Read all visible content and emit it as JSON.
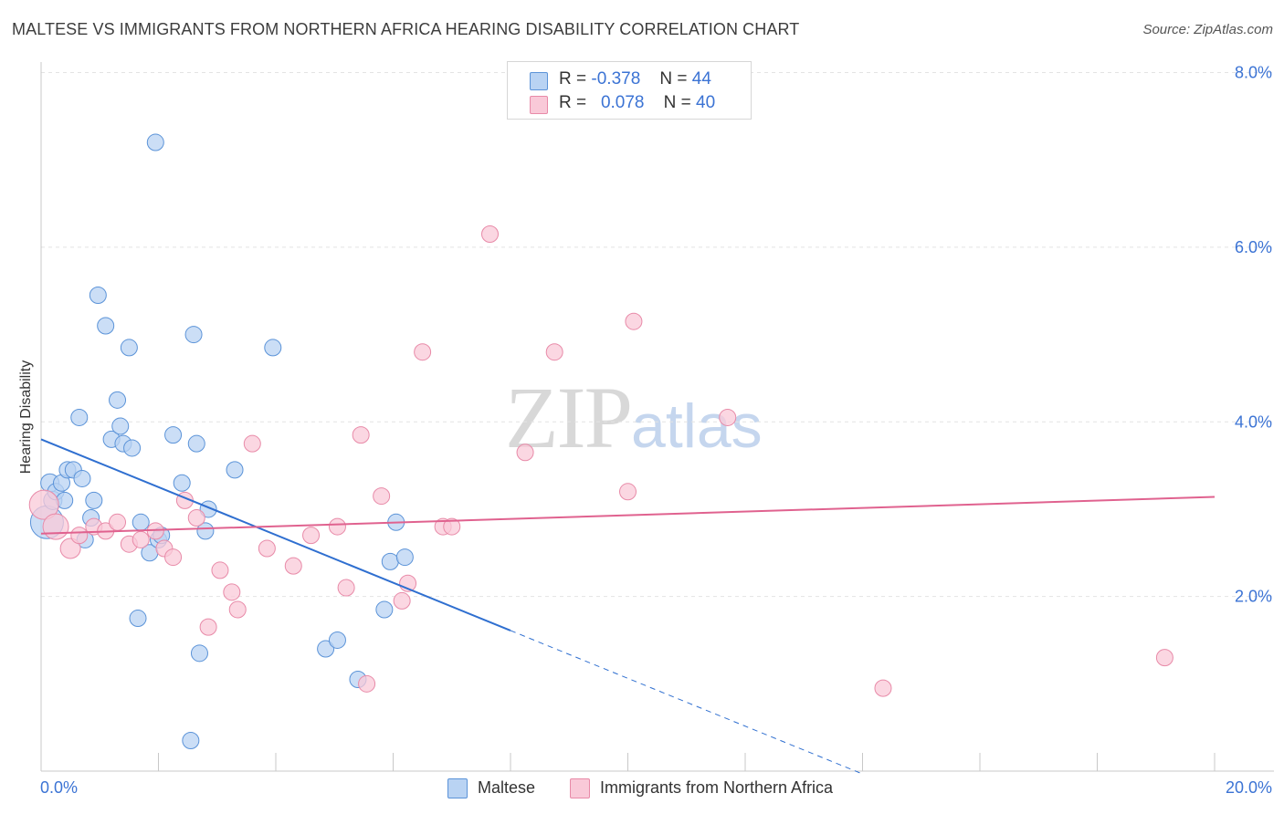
{
  "header": {
    "title": "MALTESE VS IMMIGRANTS FROM NORTHERN AFRICA HEARING DISABILITY CORRELATION CHART",
    "source": "Source: ZipAtlas.com"
  },
  "legend": {
    "maltese": {
      "r_label": "R =",
      "r_value": "-0.378",
      "n_label": "N =",
      "n_value": "44"
    },
    "immigrants": {
      "r_label": "R =",
      "r_value": "0.078",
      "n_label": "N =",
      "n_value": "40"
    }
  },
  "bottom_legend": {
    "maltese": "Maltese",
    "immigrants": "Immigrants from Northern Africa"
  },
  "watermark": {
    "zip": "ZIP",
    "atlas": "atlas"
  },
  "colors": {
    "maltese_fill": "#b9d3f3",
    "maltese_stroke": "#5b93d8",
    "maltese_line": "#2f6fd0",
    "immigrants_fill": "#f9c9d8",
    "immigrants_stroke": "#e88aa8",
    "immigrants_line": "#e0628f",
    "axis_text": "#3b73d4"
  },
  "chart_data": {
    "type": "scatter",
    "title": "MALTESE VS IMMIGRANTS FROM NORTHERN AFRICA HEARING DISABILITY CORRELATION CHART",
    "xlabel": "",
    "ylabel": "Hearing Disability",
    "xlim": [
      0,
      20
    ],
    "ylim": [
      0,
      8.3
    ],
    "x_tick_labels": [
      "0.0%",
      "20.0%"
    ],
    "y_ticks": [
      2,
      4,
      6,
      8
    ],
    "y_tick_labels": [
      "2.0%",
      "4.0%",
      "6.0%",
      "8.0%"
    ],
    "grid": "horizontal dashed",
    "legend_position": "top-center",
    "series": [
      {
        "name": "Maltese",
        "r": -0.378,
        "n": 44,
        "trend": {
          "x0": 0,
          "y0": 3.8,
          "x1": 8.0,
          "y1": 1.61,
          "dashed_to_x": 14.0
        },
        "points": [
          [
            0.1,
            2.85,
            18
          ],
          [
            0.15,
            3.3,
            10
          ],
          [
            0.2,
            3.1,
            10
          ],
          [
            0.25,
            3.2,
            9
          ],
          [
            0.35,
            3.3,
            9
          ],
          [
            0.4,
            3.1,
            9
          ],
          [
            0.45,
            3.45,
            9
          ],
          [
            0.55,
            3.45,
            9
          ],
          [
            0.65,
            4.05,
            9
          ],
          [
            0.7,
            3.35,
            9
          ],
          [
            0.75,
            2.65,
            9
          ],
          [
            0.85,
            2.9,
            9
          ],
          [
            0.9,
            3.1,
            9
          ],
          [
            0.97,
            5.45,
            9
          ],
          [
            1.1,
            5.1,
            9
          ],
          [
            1.2,
            3.8,
            9
          ],
          [
            1.3,
            4.25,
            9
          ],
          [
            1.35,
            3.95,
            9
          ],
          [
            1.4,
            3.75,
            9
          ],
          [
            1.5,
            4.85,
            9
          ],
          [
            1.55,
            3.7,
            9
          ],
          [
            1.65,
            1.75,
            9
          ],
          [
            1.7,
            2.85,
            9
          ],
          [
            1.85,
            2.5,
            9
          ],
          [
            1.95,
            7.2,
            9
          ],
          [
            2.0,
            2.65,
            9
          ],
          [
            2.05,
            2.7,
            9
          ],
          [
            2.25,
            3.85,
            9
          ],
          [
            2.4,
            3.3,
            9
          ],
          [
            2.55,
            0.35,
            9
          ],
          [
            2.6,
            5.0,
            9
          ],
          [
            2.65,
            3.75,
            9
          ],
          [
            2.7,
            1.35,
            9
          ],
          [
            2.8,
            2.75,
            9
          ],
          [
            2.85,
            3.0,
            9
          ],
          [
            3.3,
            3.45,
            9
          ],
          [
            3.95,
            4.85,
            9
          ],
          [
            4.85,
            1.4,
            9
          ],
          [
            5.05,
            1.5,
            9
          ],
          [
            5.4,
            1.05,
            9
          ],
          [
            5.85,
            1.85,
            9
          ],
          [
            5.95,
            2.4,
            9
          ],
          [
            6.05,
            2.85,
            9
          ],
          [
            6.2,
            2.45,
            9
          ]
        ]
      },
      {
        "name": "Immigrants from Northern Africa",
        "r": 0.078,
        "n": 40,
        "trend": {
          "x0": 0,
          "y0": 2.72,
          "x1": 20,
          "y1": 3.14
        },
        "points": [
          [
            0.05,
            3.05,
            16
          ],
          [
            0.25,
            2.8,
            14
          ],
          [
            0.5,
            2.55,
            11
          ],
          [
            0.65,
            2.7,
            9
          ],
          [
            0.9,
            2.8,
            9
          ],
          [
            1.1,
            2.75,
            9
          ],
          [
            1.3,
            2.85,
            9
          ],
          [
            1.5,
            2.6,
            9
          ],
          [
            1.7,
            2.65,
            9
          ],
          [
            1.95,
            2.75,
            9
          ],
          [
            2.1,
            2.55,
            9
          ],
          [
            2.25,
            2.45,
            9
          ],
          [
            2.45,
            3.1,
            9
          ],
          [
            2.65,
            2.9,
            9
          ],
          [
            2.85,
            1.65,
            9
          ],
          [
            3.05,
            2.3,
            9
          ],
          [
            3.25,
            2.05,
            9
          ],
          [
            3.35,
            1.85,
            9
          ],
          [
            3.6,
            3.75,
            9
          ],
          [
            3.85,
            2.55,
            9
          ],
          [
            4.3,
            2.35,
            9
          ],
          [
            4.6,
            2.7,
            9
          ],
          [
            5.05,
            2.8,
            9
          ],
          [
            5.2,
            2.1,
            9
          ],
          [
            5.45,
            3.85,
            9
          ],
          [
            5.55,
            1.0,
            9
          ],
          [
            5.8,
            3.15,
            9
          ],
          [
            6.15,
            1.95,
            9
          ],
          [
            6.25,
            2.15,
            9
          ],
          [
            6.5,
            4.8,
            9
          ],
          [
            6.85,
            2.8,
            9
          ],
          [
            7.0,
            2.8,
            9
          ],
          [
            7.65,
            6.15,
            9
          ],
          [
            8.25,
            3.65,
            9
          ],
          [
            8.75,
            4.8,
            9
          ],
          [
            10.0,
            3.2,
            9
          ],
          [
            10.1,
            5.15,
            9
          ],
          [
            11.7,
            4.05,
            9
          ],
          [
            14.35,
            0.95,
            9
          ],
          [
            19.15,
            1.3,
            9
          ]
        ]
      }
    ]
  }
}
